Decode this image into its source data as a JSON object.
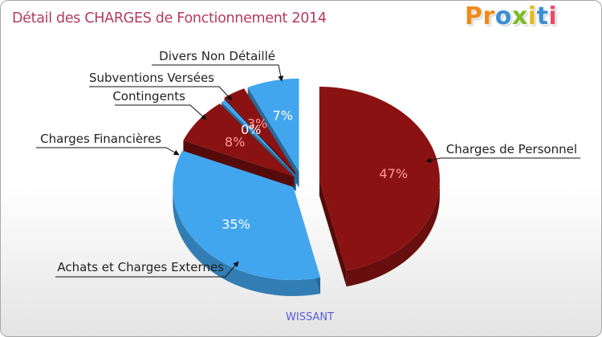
{
  "chart_data": {
    "type": "pie",
    "title": "Détail des CHARGES de Fonctionnement 2014",
    "footer": "WISSANT",
    "slices": [
      {
        "name": "Charges de Personnel",
        "value": 47,
        "label": "47%",
        "color": "#8b1212"
      },
      {
        "name": "Achats et Charges Externes",
        "value": 35,
        "label": "35%",
        "color": "#42a6ee"
      },
      {
        "name": "Charges Financières",
        "value": 8,
        "label": "8%",
        "color": "#8b1212"
      },
      {
        "name": "Contingents",
        "value": 0,
        "label": "0%",
        "color": "#42a6ee"
      },
      {
        "name": "Subventions Versées",
        "value": 3,
        "label": "3%",
        "color": "#8b1212"
      },
      {
        "name": "Divers Non Détaillé",
        "value": 7,
        "label": "7%",
        "color": "#42a6ee"
      }
    ]
  },
  "brand": {
    "logo_letters": [
      {
        "char": "P",
        "color": "#f08a1c"
      },
      {
        "char": "r",
        "color": "#f08a1c"
      },
      {
        "char": "o",
        "color": "#3a8fd6"
      },
      {
        "char": "x",
        "color": "#7dbb2a"
      },
      {
        "char": "i",
        "color": "#e8b81c"
      },
      {
        "char": "t",
        "color": "#3a8fd6"
      },
      {
        "char": "i",
        "color": "#e84a6a"
      }
    ]
  },
  "colors": {
    "title": "#b43a5e",
    "footer": "#5a5ad8",
    "dark_label": "#ff9a9a",
    "light_label": "#ffffff"
  }
}
